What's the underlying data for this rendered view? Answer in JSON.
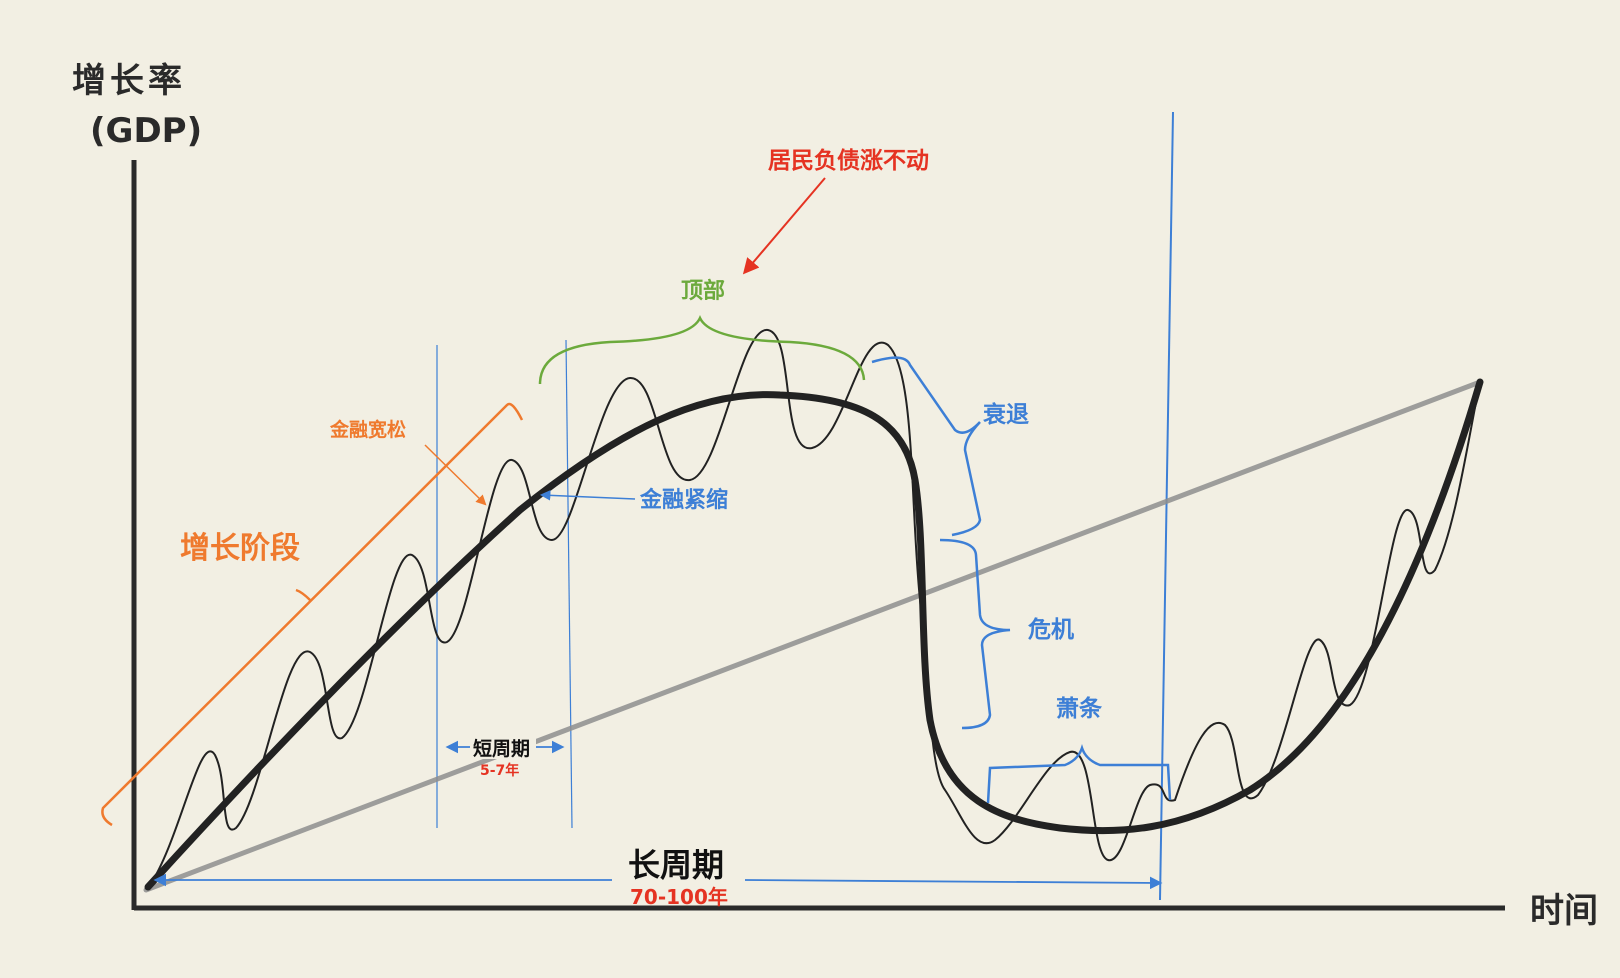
{
  "axes": {
    "y_label_line1": "增长率",
    "y_label_line2": "(GDP)",
    "x_label": "时间"
  },
  "annotations": {
    "resident_debt": "居民负债涨不动",
    "top": "顶部",
    "financial_easing": "金融宽松",
    "financial_tightening": "金融紧缩",
    "growth_phase": "增长阶段",
    "recession": "衰退",
    "crisis": "危机",
    "depression": "萧条",
    "short_cycle": "短周期",
    "short_cycle_years": "5-7年",
    "long_cycle": "长周期",
    "long_cycle_years": "70-100年"
  },
  "colors": {
    "background": "#f2efe3",
    "curve": "#222222",
    "trend_line": "#8f8f8f",
    "orange": "#ef7a2e",
    "blue": "#3d7fd6",
    "green": "#6caa3c",
    "red": "#e53322"
  }
}
